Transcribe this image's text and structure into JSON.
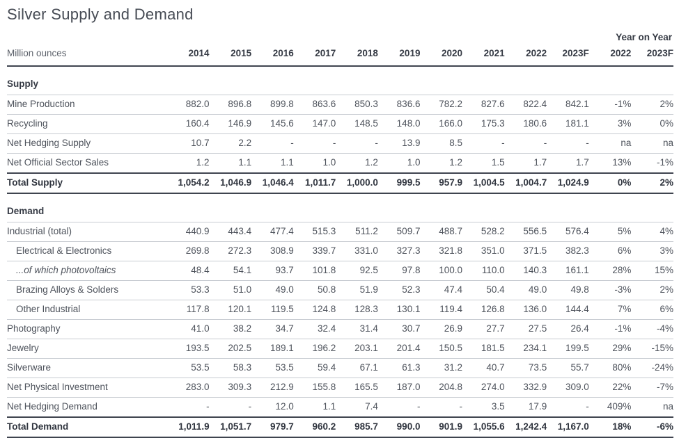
{
  "title": "Silver Supply and Demand",
  "table": {
    "unit_label": "Million ounces",
    "yoy_header": "Year on Year",
    "year_columns": [
      "2014",
      "2015",
      "2016",
      "2017",
      "2018",
      "2019",
      "2020",
      "2021",
      "2022",
      "2023F"
    ],
    "yoy_columns": [
      "2022",
      "2023F"
    ],
    "sections": [
      {
        "title": "Supply",
        "rows": [
          {
            "label": "Mine Production",
            "style": "normal",
            "values": [
              "882.0",
              "896.8",
              "899.8",
              "863.6",
              "850.3",
              "836.6",
              "782.2",
              "827.6",
              "822.4",
              "842.1"
            ],
            "yoy": [
              "-1%",
              "2%"
            ]
          },
          {
            "label": "Recycling",
            "style": "normal",
            "values": [
              "160.4",
              "146.9",
              "145.6",
              "147.0",
              "148.5",
              "148.0",
              "166.0",
              "175.3",
              "180.6",
              "181.1"
            ],
            "yoy": [
              "3%",
              "0%"
            ]
          },
          {
            "label": "Net Hedging Supply",
            "style": "normal",
            "values": [
              "10.7",
              "2.2",
              "-",
              "-",
              "-",
              "13.9",
              "8.5",
              "-",
              "-",
              "-"
            ],
            "yoy": [
              "na",
              "na"
            ]
          },
          {
            "label": "Net Official Sector Sales",
            "style": "normal",
            "values": [
              "1.2",
              "1.1",
              "1.1",
              "1.0",
              "1.2",
              "1.0",
              "1.2",
              "1.5",
              "1.7",
              "1.7"
            ],
            "yoy": [
              "13%",
              "-1%"
            ]
          },
          {
            "label": "Total Supply",
            "style": "total",
            "values": [
              "1,054.2",
              "1,046.9",
              "1,046.4",
              "1,011.7",
              "1,000.0",
              "999.5",
              "957.9",
              "1,004.5",
              "1,004.7",
              "1,024.9"
            ],
            "yoy": [
              "0%",
              "2%"
            ]
          }
        ]
      },
      {
        "title": "Demand",
        "rows": [
          {
            "label": "Industrial (total)",
            "style": "normal",
            "values": [
              "440.9",
              "443.4",
              "477.4",
              "515.3",
              "511.2",
              "509.7",
              "488.7",
              "528.2",
              "556.5",
              "576.4"
            ],
            "yoy": [
              "5%",
              "4%"
            ]
          },
          {
            "label": "Electrical & Electronics",
            "style": "indent",
            "values": [
              "269.8",
              "272.3",
              "308.9",
              "339.7",
              "331.0",
              "327.3",
              "321.8",
              "351.0",
              "371.5",
              "382.3"
            ],
            "yoy": [
              "6%",
              "3%"
            ]
          },
          {
            "label": "...of which photovoltaics",
            "style": "indent italic",
            "values": [
              "48.4",
              "54.1",
              "93.7",
              "101.8",
              "92.5",
              "97.8",
              "100.0",
              "110.0",
              "140.3",
              "161.1"
            ],
            "yoy": [
              "28%",
              "15%"
            ]
          },
          {
            "label": "Brazing Alloys & Solders",
            "style": "indent",
            "values": [
              "53.3",
              "51.0",
              "49.0",
              "50.8",
              "51.9",
              "52.3",
              "47.4",
              "50.4",
              "49.0",
              "49.8"
            ],
            "yoy": [
              "-3%",
              "2%"
            ]
          },
          {
            "label": "Other Industrial",
            "style": "indent",
            "values": [
              "117.8",
              "120.1",
              "119.5",
              "124.8",
              "128.3",
              "130.1",
              "119.4",
              "126.8",
              "136.0",
              "144.4"
            ],
            "yoy": [
              "7%",
              "6%"
            ]
          },
          {
            "label": "Photography",
            "style": "normal",
            "values": [
              "41.0",
              "38.2",
              "34.7",
              "32.4",
              "31.4",
              "30.7",
              "26.9",
              "27.7",
              "27.5",
              "26.4"
            ],
            "yoy": [
              "-1%",
              "-4%"
            ]
          },
          {
            "label": "Jewelry",
            "style": "normal",
            "values": [
              "193.5",
              "202.5",
              "189.1",
              "196.2",
              "203.1",
              "201.4",
              "150.5",
              "181.5",
              "234.1",
              "199.5"
            ],
            "yoy": [
              "29%",
              "-15%"
            ]
          },
          {
            "label": "Silverware",
            "style": "normal",
            "values": [
              "53.5",
              "58.3",
              "53.5",
              "59.4",
              "67.1",
              "61.3",
              "31.2",
              "40.7",
              "73.5",
              "55.7"
            ],
            "yoy": [
              "80%",
              "-24%"
            ]
          },
          {
            "label": "Net Physical Investment",
            "style": "normal",
            "values": [
              "283.0",
              "309.3",
              "212.9",
              "155.8",
              "165.5",
              "187.0",
              "204.8",
              "274.0",
              "332.9",
              "309.0"
            ],
            "yoy": [
              "22%",
              "-7%"
            ]
          },
          {
            "label": "Net Hedging Demand",
            "style": "normal",
            "values": [
              "-",
              "-",
              "12.0",
              "1.1",
              "7.4",
              "-",
              "-",
              "3.5",
              "17.9",
              "-"
            ],
            "yoy": [
              "409%",
              "na"
            ]
          },
          {
            "label": "Total Demand",
            "style": "total",
            "values": [
              "1,011.9",
              "1,051.7",
              "979.7",
              "960.2",
              "985.7",
              "990.0",
              "901.9",
              "1,055.6",
              "1,242.4",
              "1,167.0"
            ],
            "yoy": [
              "18%",
              "-6%"
            ]
          }
        ]
      }
    ]
  }
}
